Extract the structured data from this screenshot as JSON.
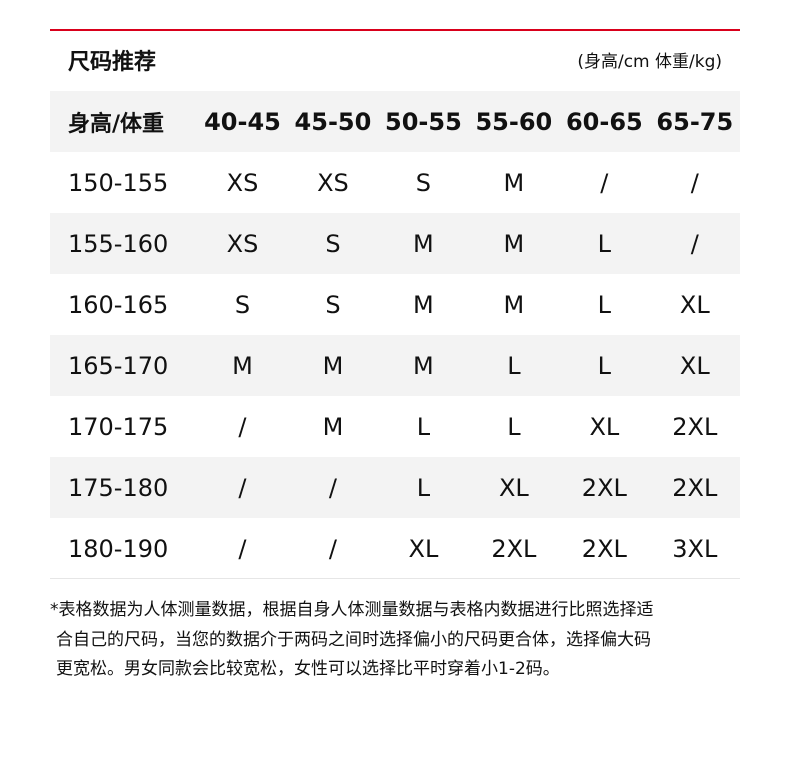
{
  "title": "尺码推荐",
  "unit_note": "(身高/cm 体重/kg)",
  "accent_color": "#d9001b",
  "table": {
    "header": [
      "身高/体重",
      "40-45",
      "45-50",
      "50-55",
      "55-60",
      "60-65",
      "65-75"
    ],
    "rows": [
      [
        "150-155",
        "XS",
        "XS",
        "S",
        "M",
        "/",
        "/"
      ],
      [
        "155-160",
        "XS",
        "S",
        "M",
        "M",
        "L",
        "/"
      ],
      [
        "160-165",
        "S",
        "S",
        "M",
        "M",
        "L",
        "XL"
      ],
      [
        "165-170",
        "M",
        "M",
        "M",
        "L",
        "L",
        "XL"
      ],
      [
        "170-175",
        "/",
        "M",
        "L",
        "L",
        "XL",
        "2XL"
      ],
      [
        "175-180",
        "/",
        "/",
        "L",
        "XL",
        "2XL",
        "2XL"
      ],
      [
        "180-190",
        "/",
        "/",
        "XL",
        "2XL",
        "2XL",
        "3XL"
      ]
    ]
  },
  "footnote": [
    "*表格数据为人体测量数据，根据自身人体测量数据与表格内数据进行比照选择适",
    "合自己的尺码，当您的数据介于两码之间时选择偏小的尺码更合体，选择偏大码",
    "更宽松。男女同款会比较宽松，女性可以选择比平时穿着小1-2码。"
  ]
}
